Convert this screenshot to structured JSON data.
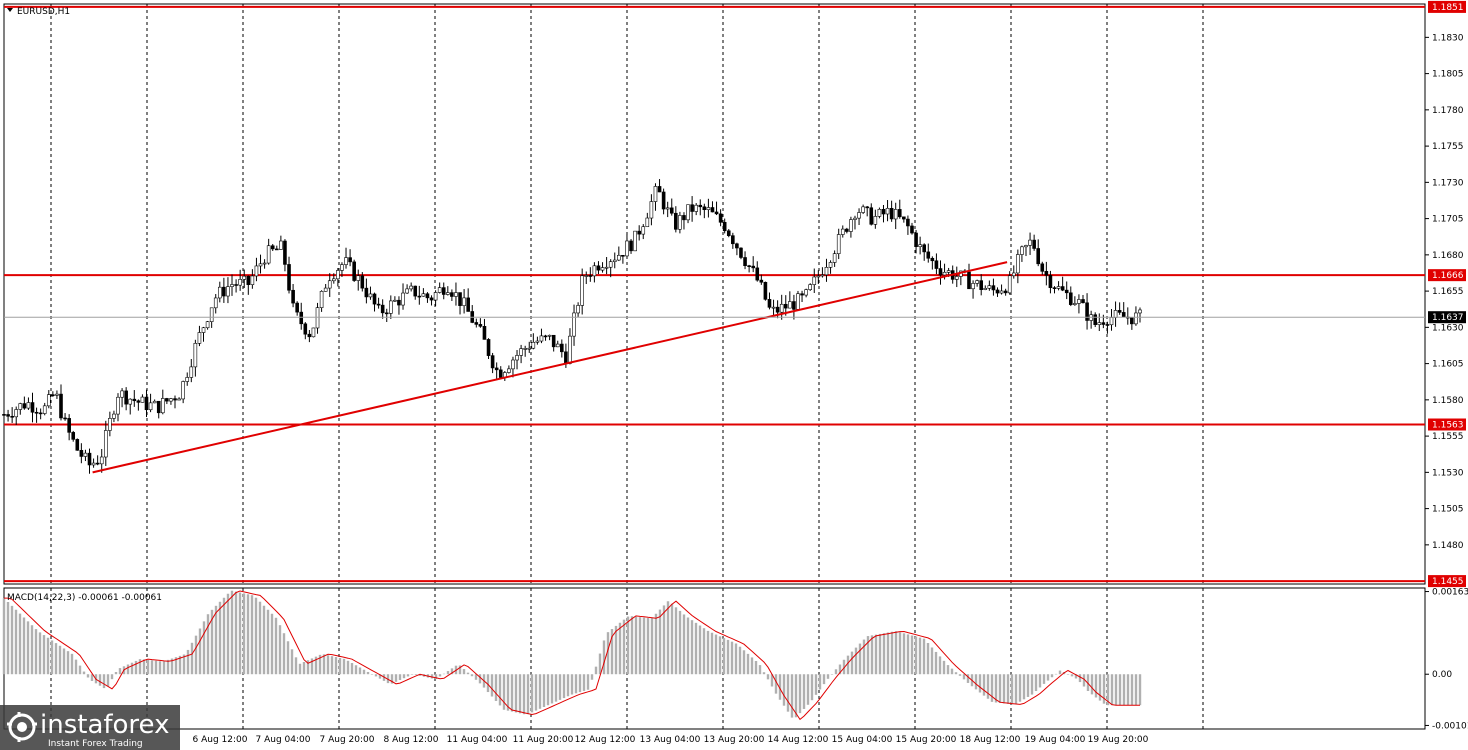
{
  "header": {
    "symbol": "EURUSD,H1"
  },
  "indicator": {
    "label": "MACD(14,22,3) -0.00061 -0.00061"
  },
  "watermark": {
    "brand": "instaforex",
    "tagline": "Instant Forex Trading"
  },
  "colors": {
    "level": "#e00000",
    "grid": "#000000",
    "bg": "#ffffff",
    "macd_signal": "#e00000",
    "hist": "#b0b0b0"
  },
  "chart_data": [
    {
      "type": "candlestick",
      "title": "EURUSD,H1",
      "y_ticks": [
        "1.1830",
        "1.1805",
        "1.1780",
        "1.1755",
        "1.1730",
        "1.1705",
        "1.1680",
        "1.1655",
        "1.1630",
        "1.1605",
        "1.1580",
        "1.1555",
        "1.1530",
        "1.1505",
        "1.1480"
      ],
      "x_ticks": [
        "6 Aug 12:00",
        "7 Aug 04:00",
        "7 Aug 20:00",
        "8 Aug 12:00",
        "11 Aug 04:00",
        "11 Aug 20:00",
        "12 Aug 12:00",
        "13 Aug 04:00",
        "13 Aug 20:00",
        "14 Aug 12:00",
        "15 Aug 04:00",
        "15 Aug 20:00",
        "18 Aug 12:00",
        "19 Aug 04:00",
        "19 Aug 20:00"
      ],
      "ylim": [
        1.1453,
        1.1853
      ],
      "levels": [
        {
          "value": 1.1851,
          "label": "1.1851"
        },
        {
          "value": 1.1666,
          "label": "1.1666"
        },
        {
          "value": 1.1563,
          "label": "1.1563"
        },
        {
          "value": 1.1455,
          "label": "1.1455"
        }
      ],
      "current_price": {
        "value": 1.1637,
        "label": "1.1637"
      },
      "trendline": [
        {
          "x": 0.078,
          "y": 1.153
        },
        {
          "x": 0.883,
          "y": 1.1675
        }
      ],
      "close_path": [
        [
          0.0,
          1.157
        ],
        [
          0.02,
          1.1578
        ],
        [
          0.035,
          1.1573
        ],
        [
          0.045,
          1.1585
        ],
        [
          0.055,
          1.156
        ],
        [
          0.065,
          1.1545
        ],
        [
          0.075,
          1.1535
        ],
        [
          0.085,
          1.154
        ],
        [
          0.1,
          1.1585
        ],
        [
          0.12,
          1.1578
        ],
        [
          0.135,
          1.1575
        ],
        [
          0.155,
          1.1585
        ],
        [
          0.17,
          1.162
        ],
        [
          0.185,
          1.165
        ],
        [
          0.2,
          1.166
        ],
        [
          0.215,
          1.166
        ],
        [
          0.23,
          1.168
        ],
        [
          0.245,
          1.1685
        ],
        [
          0.255,
          1.164
        ],
        [
          0.27,
          1.1625
        ],
        [
          0.285,
          1.1665
        ],
        [
          0.3,
          1.1675
        ],
        [
          0.315,
          1.166
        ],
        [
          0.33,
          1.164
        ],
        [
          0.345,
          1.1648
        ],
        [
          0.36,
          1.1655
        ],
        [
          0.375,
          1.165
        ],
        [
          0.39,
          1.166
        ],
        [
          0.405,
          1.1645
        ],
        [
          0.42,
          1.1625
        ],
        [
          0.435,
          1.1598
        ],
        [
          0.45,
          1.161
        ],
        [
          0.465,
          1.162
        ],
        [
          0.48,
          1.1622
        ],
        [
          0.495,
          1.161
        ],
        [
          0.51,
          1.1665
        ],
        [
          0.525,
          1.1675
        ],
        [
          0.54,
          1.168
        ],
        [
          0.555,
          1.169
        ],
        [
          0.575,
          1.1725
        ],
        [
          0.59,
          1.17
        ],
        [
          0.605,
          1.1712
        ],
        [
          0.62,
          1.171
        ],
        [
          0.635,
          1.17
        ],
        [
          0.65,
          1.168
        ],
        [
          0.665,
          1.166
        ],
        [
          0.675,
          1.164
        ],
        [
          0.69,
          1.1645
        ],
        [
          0.705,
          1.165
        ],
        [
          0.72,
          1.167
        ],
        [
          0.735,
          1.169
        ],
        [
          0.75,
          1.1712
        ],
        [
          0.765,
          1.1705
        ],
        [
          0.78,
          1.171
        ],
        [
          0.795,
          1.17
        ],
        [
          0.81,
          1.168
        ],
        [
          0.825,
          1.167
        ],
        [
          0.84,
          1.1665
        ],
        [
          0.855,
          1.166
        ],
        [
          0.87,
          1.1655
        ],
        [
          0.885,
          1.166
        ],
        [
          0.895,
          1.168
        ],
        [
          0.905,
          1.169
        ],
        [
          0.915,
          1.1668
        ],
        [
          0.93,
          1.1655
        ],
        [
          0.945,
          1.1648
        ],
        [
          0.96,
          1.1632
        ],
        [
          0.97,
          1.1637
        ]
      ],
      "volatility": 0.0012
    },
    {
      "type": "histogram",
      "title": "MACD(14,22,3) -0.00061 -0.00061",
      "y_ticks": [
        "0.00163",
        "0.00",
        "-0.00101"
      ],
      "ylim": [
        -0.00108,
        0.0017
      ],
      "path": [
        [
          0.0,
          0.0015
        ],
        [
          0.03,
          0.00085
        ],
        [
          0.06,
          0.0004
        ],
        [
          0.075,
          -0.0001
        ],
        [
          0.09,
          -0.0003
        ],
        [
          0.1,
          0.0001
        ],
        [
          0.12,
          0.0003
        ],
        [
          0.14,
          0.00025
        ],
        [
          0.16,
          0.0004
        ],
        [
          0.18,
          0.0012
        ],
        [
          0.2,
          0.00165
        ],
        [
          0.22,
          0.00155
        ],
        [
          0.24,
          0.0011
        ],
        [
          0.26,
          0.0002
        ],
        [
          0.28,
          0.0004
        ],
        [
          0.3,
          0.0003
        ],
        [
          0.32,
          5e-05
        ],
        [
          0.34,
          -0.0002
        ],
        [
          0.36,
          0.0
        ],
        [
          0.38,
          -0.0001
        ],
        [
          0.4,
          0.0002
        ],
        [
          0.42,
          -0.0002
        ],
        [
          0.44,
          -0.0007
        ],
        [
          0.46,
          -0.0008
        ],
        [
          0.48,
          -0.0006
        ],
        [
          0.5,
          -0.0004
        ],
        [
          0.515,
          -0.0003
        ],
        [
          0.53,
          0.0008
        ],
        [
          0.55,
          0.00115
        ],
        [
          0.57,
          0.0011
        ],
        [
          0.585,
          0.00145
        ],
        [
          0.6,
          0.00115
        ],
        [
          0.62,
          0.00085
        ],
        [
          0.645,
          0.0006
        ],
        [
          0.665,
          0.0002
        ],
        [
          0.68,
          -0.0004
        ],
        [
          0.695,
          -0.0009
        ],
        [
          0.71,
          -0.00055
        ],
        [
          0.725,
          -0.0001
        ],
        [
          0.74,
          0.0003
        ],
        [
          0.76,
          0.00075
        ],
        [
          0.785,
          0.00085
        ],
        [
          0.81,
          0.0007
        ],
        [
          0.83,
          0.0002
        ],
        [
          0.85,
          -0.0002
        ],
        [
          0.87,
          -0.00055
        ],
        [
          0.89,
          -0.0006
        ],
        [
          0.905,
          -0.0004
        ],
        [
          0.915,
          -0.0002
        ],
        [
          0.93,
          8e-05
        ],
        [
          0.945,
          -0.0001
        ],
        [
          0.955,
          -0.00035
        ],
        [
          0.97,
          -0.00061
        ]
      ]
    }
  ]
}
